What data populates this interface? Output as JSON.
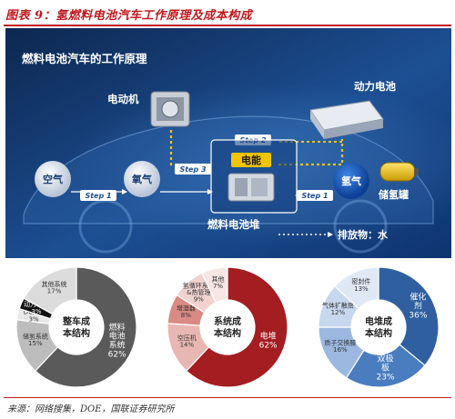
{
  "figure_title": "图表 9：氢燃料电池汽车工作原理及成本构成",
  "source": "来源：网络搜集，DOE，国联证券研究所",
  "diagram": {
    "heading": "燃料电池汽车的工作原理",
    "labels": {
      "motor": "电动机",
      "battery": "动力电池",
      "electric": "电能",
      "air": "空气",
      "oxygen": "氧气",
      "hydrogen": "氢气",
      "tank": "储氢罐",
      "stack": "燃料电池堆",
      "emission": "排放物：水"
    },
    "steps": {
      "step1a": "Step 1",
      "step1b": "Step 1",
      "step2": "Step 2",
      "step3": "Step 3"
    },
    "colors": {
      "bg_dark": "#0e2a5a",
      "bg_light": "#2a6fb8",
      "accent": "#f5c400"
    }
  },
  "chart_data": [
    {
      "type": "pie",
      "title": "整车成本结构",
      "slices": [
        {
          "label": "燃料电池系统",
          "value": 62,
          "pct": "62%",
          "color": "#5a5a5a"
        },
        {
          "label": "储氢系统",
          "value": 15,
          "pct": "15%",
          "color": "#bdbdbd"
        },
        {
          "label": "DC/DC",
          "value": 3,
          "pct": "3%",
          "color": "#e8e8e8"
        },
        {
          "label": "动力电池",
          "value": 3,
          "pct": "3%",
          "color": "#111111"
        },
        {
          "label": "其他系统",
          "value": 17,
          "pct": "17%",
          "color": "#dcdcdc"
        }
      ]
    },
    {
      "type": "pie",
      "title": "系统成本结构",
      "slices": [
        {
          "label": "电堆",
          "value": 62,
          "pct": "62%",
          "color": "#a31d21"
        },
        {
          "label": "空压机",
          "value": 14,
          "pct": "14%",
          "color": "#e9b7b3"
        },
        {
          "label": "增湿器",
          "value": 8,
          "pct": "8%",
          "color": "#d98a84"
        },
        {
          "label": "氢循环系统&热管理",
          "value": 9,
          "pct": "9%",
          "color": "#f0d3cf"
        },
        {
          "label": "其他",
          "value": 7,
          "pct": "7%",
          "color": "#f7e6e3"
        }
      ]
    },
    {
      "type": "pie",
      "title": "电堆成本结构",
      "slices": [
        {
          "label": "催化剂",
          "value": 36,
          "pct": "36%",
          "color": "#2f5f9f"
        },
        {
          "label": "双极板",
          "value": 23,
          "pct": "23%",
          "color": "#4a7cc0"
        },
        {
          "label": "质子交换膜",
          "value": 16,
          "pct": "16%",
          "color": "#9cb8e0"
        },
        {
          "label": "气体扩散层",
          "value": 12,
          "pct": "12%",
          "color": "#c7d7ee"
        },
        {
          "label": "密封件",
          "value": 13,
          "pct": "13%",
          "color": "#dfe8f5"
        }
      ]
    }
  ]
}
